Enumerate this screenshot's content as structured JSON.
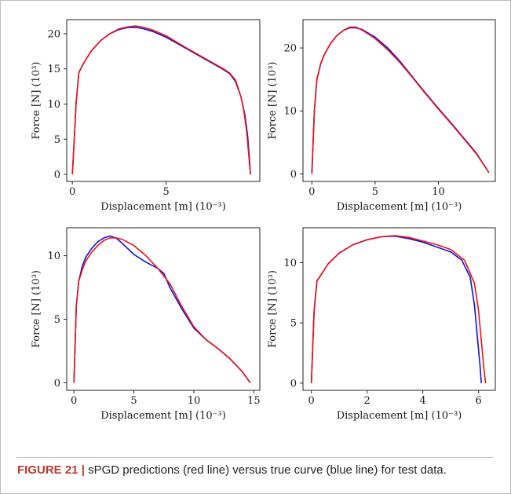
{
  "caption": {
    "label": "FIGURE 21",
    "separator": "|",
    "text": "sPGD predictions (red line) versus true curve (blue line) for test data."
  },
  "colors": {
    "prediction": "#ee1111",
    "truth": "#1111dd",
    "axis": "#222222"
  },
  "chart_data": [
    {
      "type": "line",
      "xlabel": "Displacement [m] (10⁻³)",
      "ylabel": "Force [N] (10³)",
      "xlim": [
        -0.3,
        10.0
      ],
      "ylim": [
        -1.0,
        22.0
      ],
      "xticks": [
        0,
        5
      ],
      "yticks": [
        0,
        5,
        10,
        15,
        20
      ],
      "series": [
        {
          "color": "#1111dd",
          "x": [
            0,
            0.1,
            0.2,
            0.35,
            0.6,
            1.0,
            1.5,
            2.0,
            2.5,
            3.0,
            3.4,
            3.8,
            4.3,
            5.0,
            6.0,
            7.0,
            8.0,
            8.4,
            8.7,
            9.0,
            9.2,
            9.35,
            9.45,
            9.5
          ],
          "y": [
            0,
            5,
            10,
            14.5,
            15.8,
            17.5,
            19.0,
            20.0,
            20.6,
            20.9,
            20.9,
            20.7,
            20.3,
            19.5,
            18.0,
            16.5,
            15.0,
            14.3,
            13.2,
            11.0,
            8.5,
            5.5,
            2.0,
            0
          ]
        },
        {
          "color": "#ee1111",
          "x": [
            0,
            0.1,
            0.2,
            0.35,
            0.6,
            1.0,
            1.5,
            2.0,
            2.5,
            3.0,
            3.4,
            3.8,
            4.3,
            5.0,
            6.0,
            7.0,
            8.0,
            8.4,
            8.7,
            9.0,
            9.15,
            9.3,
            9.4,
            9.5
          ],
          "y": [
            0,
            5,
            10,
            14.5,
            15.8,
            17.5,
            19.0,
            20.0,
            20.7,
            21.0,
            21.1,
            20.9,
            20.5,
            19.7,
            18.1,
            16.6,
            15.1,
            14.4,
            13.4,
            11.0,
            9.0,
            6.0,
            3.0,
            0
          ]
        }
      ]
    },
    {
      "type": "line",
      "xlabel": "Displacement [m] (10⁻³)",
      "ylabel": "Force [N] (10³)",
      "xlim": [
        -0.7,
        14.5
      ],
      "ylim": [
        -1.2,
        24.5
      ],
      "xticks": [
        0,
        5,
        10
      ],
      "yticks": [
        0,
        10,
        20
      ],
      "series": [
        {
          "color": "#1111dd",
          "x": [
            0,
            0.1,
            0.2,
            0.4,
            0.7,
            1.0,
            1.5,
            2.0,
            2.5,
            3.0,
            3.5,
            4.0,
            5.0,
            6.0,
            7.0,
            8.0,
            9.0,
            10.0,
            11.0,
            12.0,
            13.0,
            14.0
          ],
          "y": [
            0,
            5,
            10,
            15,
            17.5,
            19.0,
            20.8,
            22.0,
            22.8,
            23.2,
            23.2,
            22.9,
            21.7,
            20.0,
            17.8,
            15.3,
            12.8,
            10.4,
            8.1,
            5.7,
            3.3,
            0.2
          ]
        },
        {
          "color": "#ee1111",
          "x": [
            0,
            0.1,
            0.2,
            0.4,
            0.7,
            1.0,
            1.5,
            2.0,
            2.5,
            3.0,
            3.5,
            4.0,
            5.0,
            6.0,
            7.0,
            8.0,
            9.0,
            10.0,
            11.0,
            12.0,
            13.0,
            14.0
          ],
          "y": [
            0,
            5,
            10,
            15,
            17.5,
            19.0,
            20.8,
            22.0,
            22.8,
            23.3,
            23.3,
            22.8,
            21.5,
            19.7,
            17.6,
            15.2,
            12.7,
            10.3,
            8.0,
            5.6,
            3.2,
            0.2
          ]
        }
      ]
    },
    {
      "type": "line",
      "xlabel": "Displacement [m] (10⁻³)",
      "ylabel": "Force [N] (10³)",
      "xlim": [
        -0.6,
        15.5
      ],
      "ylim": [
        -0.6,
        12.2
      ],
      "xticks": [
        0,
        5,
        10,
        15
      ],
      "yticks": [
        0,
        5,
        10
      ],
      "series": [
        {
          "color": "#1111dd",
          "x": [
            0,
            0.1,
            0.2,
            0.4,
            0.7,
            1.0,
            1.5,
            2.0,
            2.5,
            3.0,
            3.5,
            4.0,
            5.0,
            6.0,
            7.0,
            7.5,
            8.0,
            9.0,
            10.0,
            11.0,
            12.0,
            13.0,
            14.0,
            14.7
          ],
          "y": [
            0,
            3,
            6,
            8.0,
            9.2,
            9.9,
            10.6,
            11.1,
            11.4,
            11.55,
            11.4,
            11.0,
            10.1,
            9.5,
            9.0,
            8.6,
            7.5,
            5.8,
            4.3,
            3.4,
            2.7,
            1.9,
            0.9,
            0
          ]
        },
        {
          "color": "#ee1111",
          "x": [
            0,
            0.1,
            0.2,
            0.4,
            0.7,
            1.0,
            1.5,
            2.0,
            2.5,
            3.0,
            3.5,
            4.0,
            5.0,
            6.0,
            7.0,
            7.5,
            8.0,
            9.0,
            10.0,
            11.0,
            12.0,
            13.0,
            14.0,
            14.7
          ],
          "y": [
            0,
            3,
            6,
            8.0,
            8.9,
            9.6,
            10.3,
            10.8,
            11.2,
            11.4,
            11.4,
            11.3,
            10.8,
            10.0,
            9.0,
            8.4,
            7.8,
            6.0,
            4.4,
            3.4,
            2.7,
            1.9,
            0.9,
            0
          ]
        }
      ]
    },
    {
      "type": "line",
      "xlabel": "Displacement [m] (10⁻³)",
      "ylabel": "Force [N] (10³)",
      "xlim": [
        -0.3,
        6.6
      ],
      "ylim": [
        -0.6,
        12.9
      ],
      "xticks": [
        0,
        2,
        4,
        6
      ],
      "yticks": [
        0,
        5,
        10
      ],
      "series": [
        {
          "color": "#1111dd",
          "x": [
            0,
            0.05,
            0.1,
            0.2,
            0.35,
            0.6,
            1.0,
            1.5,
            2.0,
            2.5,
            3.0,
            3.5,
            4.0,
            4.5,
            5.0,
            5.4,
            5.7,
            5.85,
            5.95,
            6.05,
            6.1
          ],
          "y": [
            0,
            3,
            6,
            8.5,
            9.0,
            9.9,
            10.8,
            11.5,
            11.9,
            12.15,
            12.2,
            12.0,
            11.7,
            11.3,
            10.9,
            10.2,
            8.8,
            6.5,
            4.0,
            1.5,
            0
          ]
        },
        {
          "color": "#ee1111",
          "x": [
            0,
            0.05,
            0.1,
            0.2,
            0.35,
            0.6,
            1.0,
            1.5,
            2.0,
            2.5,
            3.0,
            3.5,
            4.0,
            4.5,
            5.0,
            5.5,
            5.85,
            6.0,
            6.1,
            6.2,
            6.25
          ],
          "y": [
            0,
            3,
            6,
            8.5,
            9.0,
            9.9,
            10.8,
            11.5,
            11.9,
            12.15,
            12.25,
            12.1,
            11.8,
            11.5,
            11.1,
            10.2,
            8.3,
            6.0,
            3.5,
            1.0,
            0
          ]
        }
      ]
    }
  ]
}
